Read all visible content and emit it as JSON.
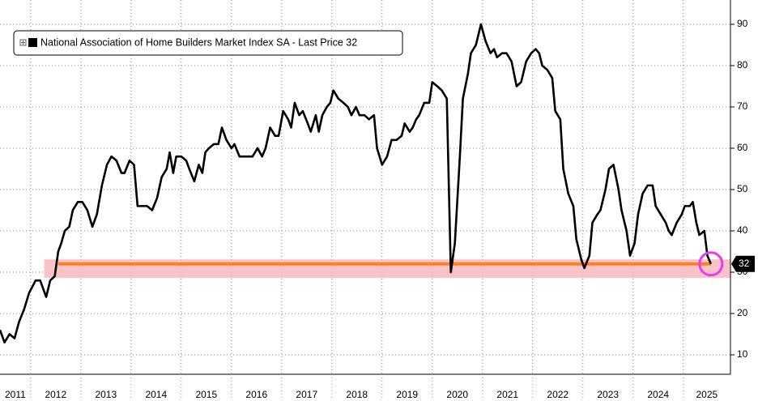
{
  "chart_data": {
    "type": "line",
    "series": [
      {
        "name": "National Association of Home Builders Market Index SA - Last Price 32",
        "color": "#000000",
        "x": [
          2011.39,
          2011.48,
          2011.58,
          2011.68,
          2011.77,
          2011.87,
          2011.97,
          2012.1,
          2012.19,
          2012.31,
          2012.39,
          2012.48,
          2012.55,
          2012.61,
          2012.68,
          2012.77,
          2012.84,
          2012.94,
          2013.03,
          2013.13,
          2013.23,
          2013.32,
          2013.42,
          2013.52,
          2013.61,
          2013.71,
          2013.81,
          2013.87,
          2013.97,
          2014.06,
          2014.13,
          2014.23,
          2014.32,
          2014.42,
          2014.52,
          2014.61,
          2014.71,
          2014.77,
          2014.84,
          2014.9,
          2015.0,
          2015.1,
          2015.16,
          2015.26,
          2015.35,
          2015.42,
          2015.48,
          2015.55,
          2015.65,
          2015.74,
          2015.81,
          2015.9,
          2016.0,
          2016.06,
          2016.16,
          2016.26,
          2016.35,
          2016.42,
          2016.52,
          2016.61,
          2016.68,
          2016.77,
          2016.87,
          2016.94,
          2017.03,
          2017.13,
          2017.19,
          2017.26,
          2017.35,
          2017.42,
          2017.52,
          2017.58,
          2017.68,
          2017.74,
          2017.81,
          2017.9,
          2017.97,
          2018.03,
          2018.13,
          2018.23,
          2018.32,
          2018.39,
          2018.48,
          2018.55,
          2018.65,
          2018.74,
          2018.84,
          2018.9,
          2019.0,
          2019.1,
          2019.19,
          2019.29,
          2019.39,
          2019.45,
          2019.55,
          2019.61,
          2019.68,
          2019.74,
          2019.84,
          2019.94,
          2020.0,
          2020.1,
          2020.19,
          2020.29,
          2020.37,
          2020.45,
          2020.55,
          2020.61,
          2020.71,
          2020.77,
          2020.87,
          2020.97,
          2021.06,
          2021.16,
          2021.23,
          2021.29,
          2021.39,
          2021.48,
          2021.58,
          2021.68,
          2021.77,
          2021.87,
          2021.97,
          2022.06,
          2022.13,
          2022.19,
          2022.29,
          2022.39,
          2022.45,
          2022.55,
          2022.61,
          2022.71,
          2022.81,
          2022.87,
          2022.97,
          2023.03,
          2023.13,
          2023.19,
          2023.29,
          2023.35,
          2023.45,
          2023.52,
          2023.61,
          2023.71,
          2023.77,
          2023.87,
          2023.94,
          2024.03,
          2024.1,
          2024.19,
          2024.29,
          2024.39,
          2024.45,
          2024.55,
          2024.65,
          2024.71,
          2024.77,
          2024.87,
          2024.97,
          2025.03,
          2025.13,
          2025.19,
          2025.26,
          2025.32,
          2025.42,
          2025.48,
          2025.55
        ],
        "values": [
          16,
          13,
          15,
          14,
          18,
          21,
          25,
          28,
          28,
          24,
          28,
          29,
          35,
          37,
          40,
          41,
          45,
          47,
          47,
          45,
          41,
          44,
          51,
          56,
          58,
          57,
          54,
          54,
          57,
          56,
          46,
          46,
          46,
          45,
          48,
          53,
          55,
          59,
          54,
          58,
          58,
          57,
          55,
          52,
          56,
          54,
          59,
          60,
          61,
          61,
          65,
          62,
          60,
          61,
          58,
          58,
          58,
          58,
          60,
          58,
          60,
          65,
          63,
          63,
          69,
          67,
          65,
          71,
          68,
          69,
          66,
          64,
          68,
          64,
          68,
          70,
          71,
          74,
          72,
          71,
          70,
          68,
          70,
          68,
          68,
          67,
          68,
          60,
          56,
          58,
          62,
          62,
          63,
          66,
          64,
          65,
          67,
          68,
          71,
          71,
          76,
          75,
          74,
          72,
          30,
          37,
          58,
          72,
          78,
          83,
          85,
          90,
          86,
          83,
          84,
          82,
          83,
          83,
          81,
          75,
          76,
          81,
          83,
          84,
          83,
          80,
          79,
          77,
          69,
          67,
          55,
          49,
          46,
          38,
          33,
          31,
          34,
          42,
          44,
          45,
          50,
          55,
          56,
          50,
          45,
          40,
          34,
          37,
          44,
          49,
          51,
          51,
          46,
          44,
          42,
          40,
          39,
          42,
          44,
          46,
          46,
          47,
          42,
          39,
          40,
          34,
          32
        ]
      }
    ],
    "last_price": 32,
    "highlight_band": {
      "x": [
        2012.27,
        2025.94
      ],
      "y": [
        28.6,
        33.1
      ],
      "color": "#f9b8bd"
    },
    "reference_line": {
      "x": [
        2012.55,
        2025.55
      ],
      "y": 32,
      "color": "#ff7f27"
    },
    "xlim": [
      2011.39,
      2025.94
    ],
    "xticks": [
      2011,
      2012,
      2013,
      2014,
      2015,
      2016,
      2017,
      2018,
      2019,
      2020,
      2021,
      2022,
      2023,
      2024,
      2025
    ],
    "ylim": [
      5.29,
      95.88
    ],
    "yticks": [
      10,
      20,
      30,
      40,
      50,
      60,
      70,
      80,
      90
    ],
    "grid": true
  }
}
